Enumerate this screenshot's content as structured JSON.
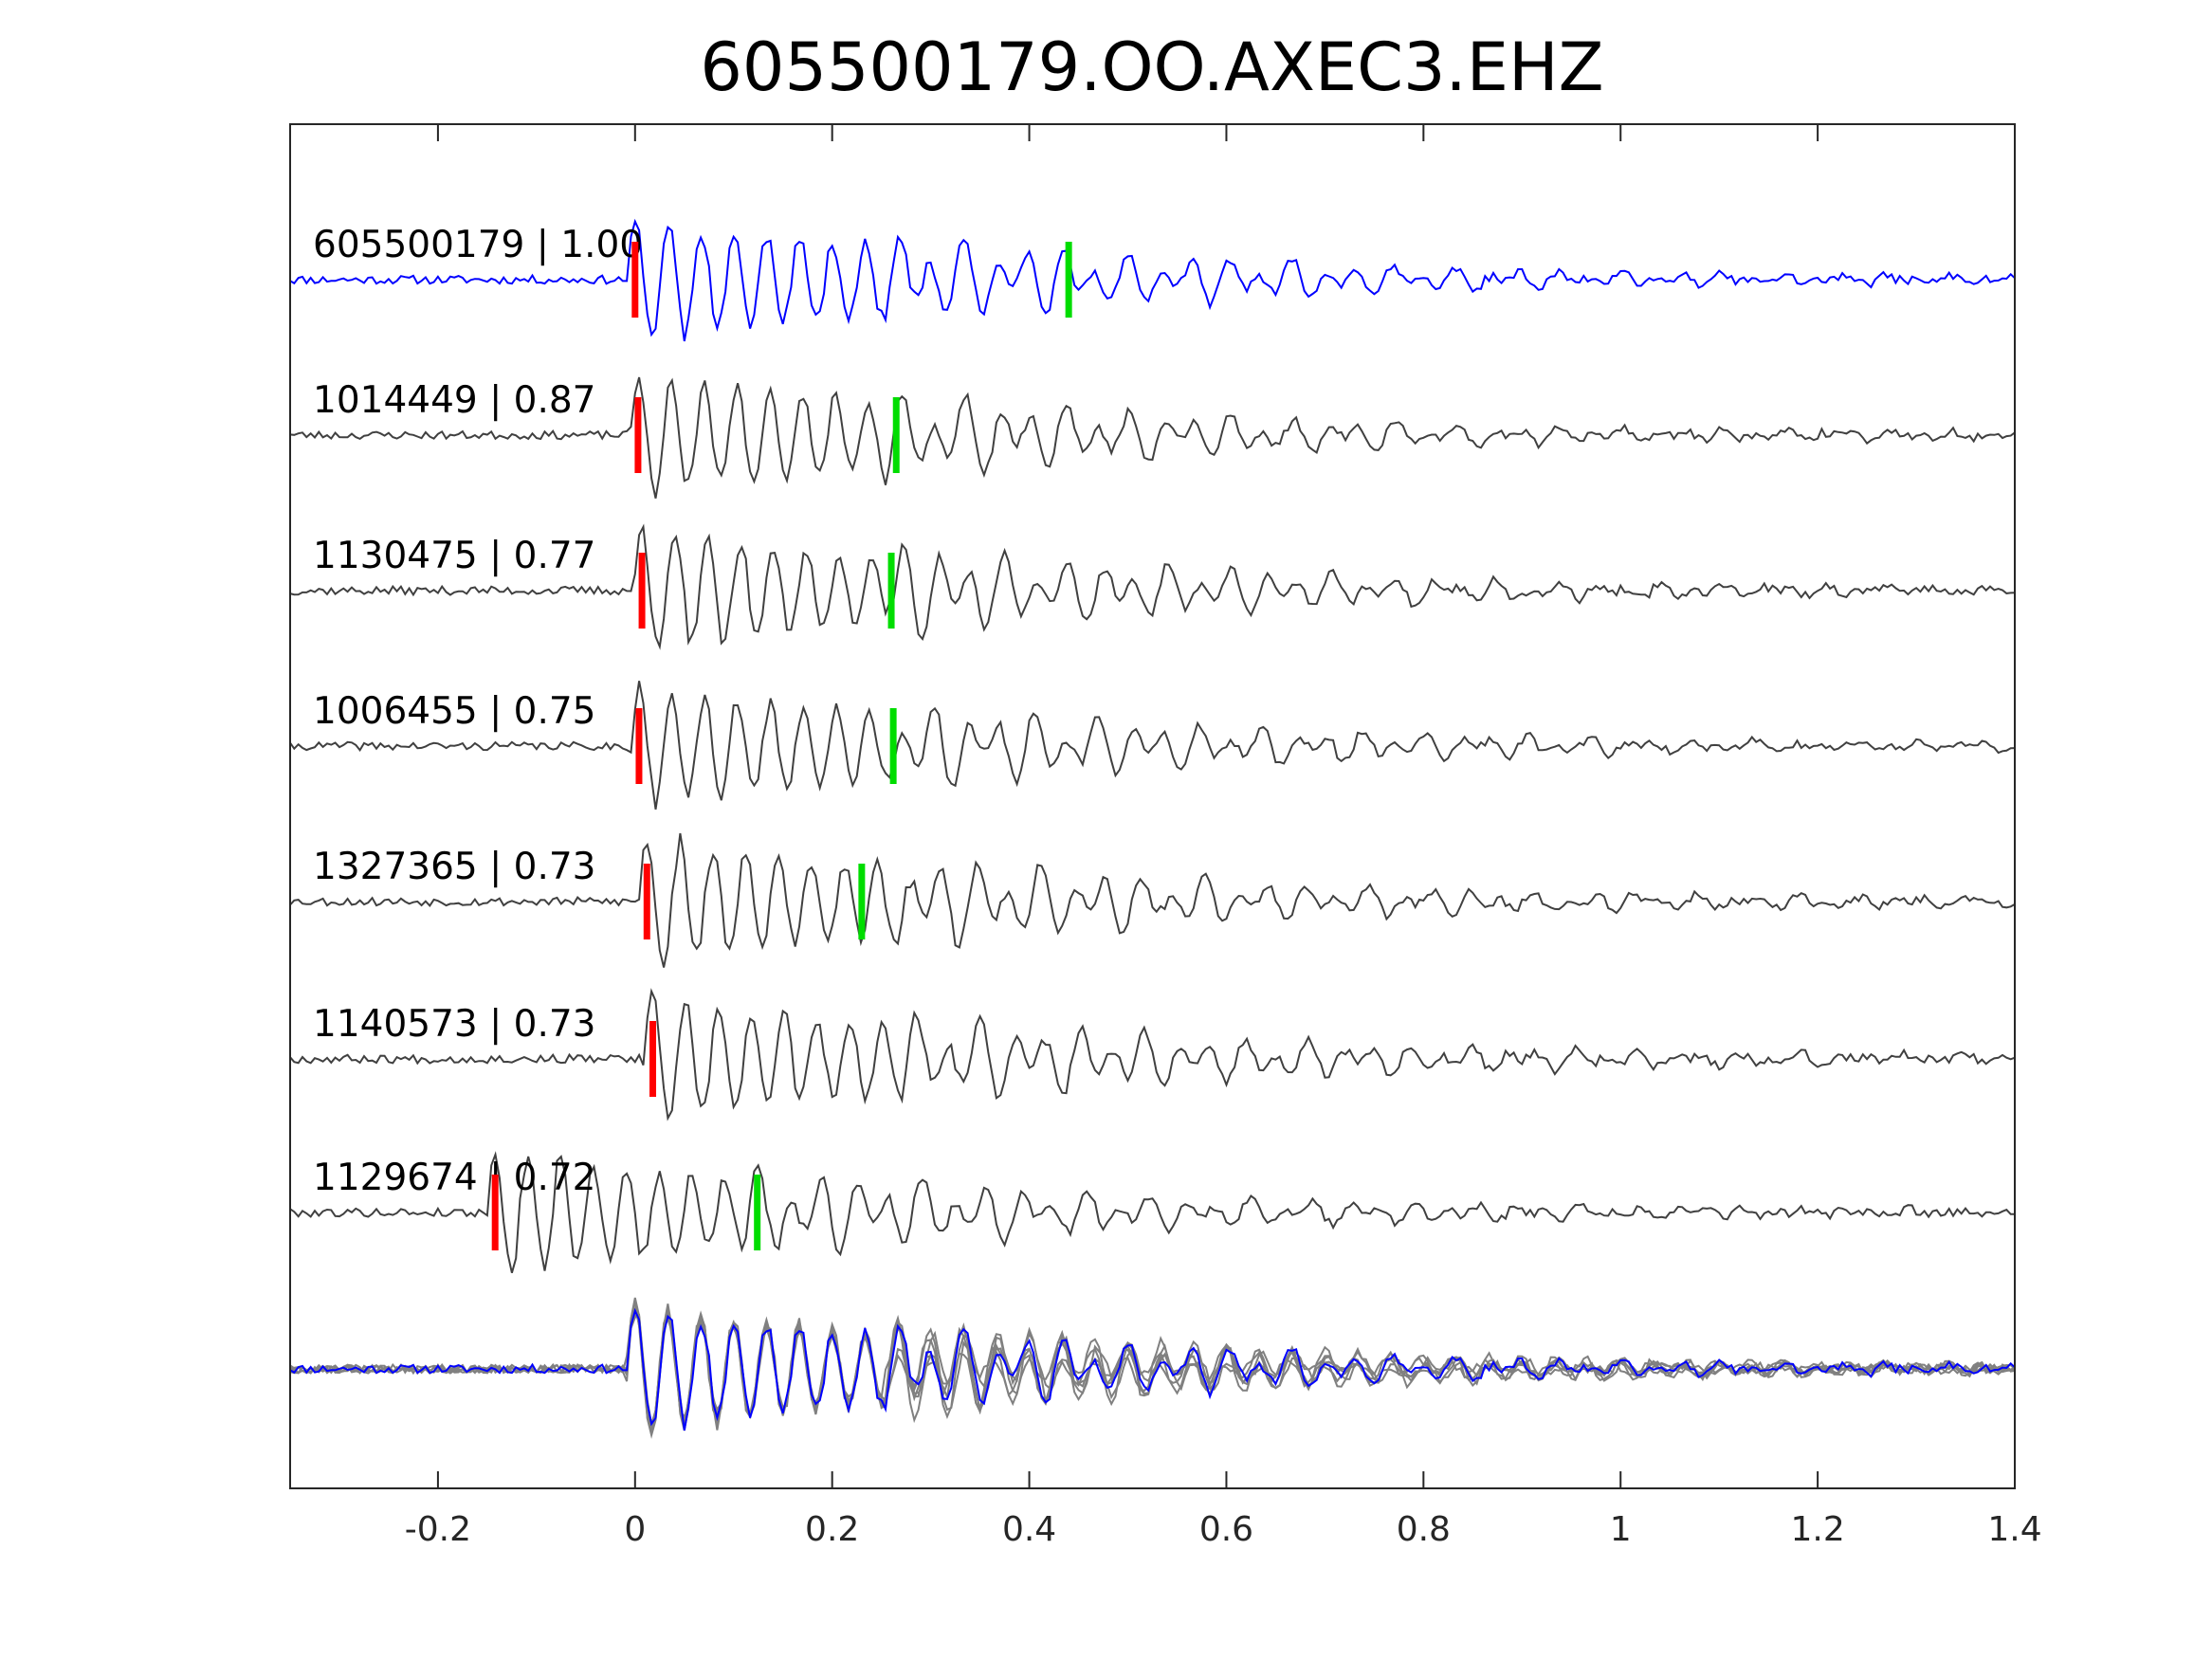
{
  "chart_data": {
    "type": "line",
    "title": "605500179.OO.AXEC3.EHZ",
    "xlabel": "",
    "ylabel": "",
    "xlim": [
      -0.35,
      1.4
    ],
    "xticks": [
      -0.2,
      0,
      0.2,
      0.4,
      0.6,
      0.8,
      1,
      1.2,
      1.4
    ],
    "xtick_labels": [
      "-0.2",
      "0",
      "0.2",
      "0.4",
      "0.6",
      "0.8",
      "1",
      "1.2",
      "1.4"
    ],
    "grid": false,
    "colors": {
      "template": "#0000ff",
      "match": "#404040",
      "stack": "#808080",
      "p_pick": "#ff0000",
      "s_pick": "#00dd00",
      "axes": "#262626"
    },
    "traces": [
      {
        "id": "605500179",
        "cc": "1.00",
        "label": "605500179 | 1.00",
        "p_pick": 0.0,
        "s_pick": 0.44,
        "template": true,
        "seed": 11,
        "amp": 1.0
      },
      {
        "id": "1014449",
        "cc": "0.87",
        "label": "1014449 | 0.87",
        "p_pick": 0.003,
        "s_pick": 0.265,
        "template": false,
        "seed": 23,
        "amp": 0.95
      },
      {
        "id": "1130475",
        "cc": "0.77",
        "label": "1130475 | 0.77",
        "p_pick": 0.007,
        "s_pick": 0.26,
        "template": false,
        "seed": 37,
        "amp": 1.0
      },
      {
        "id": "1006455",
        "cc": "0.75",
        "label": "1006455 | 0.75",
        "p_pick": 0.004,
        "s_pick": 0.262,
        "template": false,
        "seed": 41,
        "amp": 0.95
      },
      {
        "id": "1327365",
        "cc": "0.73",
        "label": "1327365 | 0.73",
        "p_pick": 0.012,
        "s_pick": 0.23,
        "template": false,
        "seed": 53,
        "amp": 1.0
      },
      {
        "id": "1140573",
        "cc": "0.73",
        "label": "1140573 | 0.73",
        "p_pick": 0.018,
        "s_pick": null,
        "template": false,
        "seed": 67,
        "amp": 1.0
      },
      {
        "id": "1129674",
        "cc": "0.72",
        "label": "1129674 | 0.72",
        "p_pick": -0.142,
        "s_pick": 0.124,
        "template": false,
        "seed": 79,
        "amp": 1.0
      }
    ]
  }
}
